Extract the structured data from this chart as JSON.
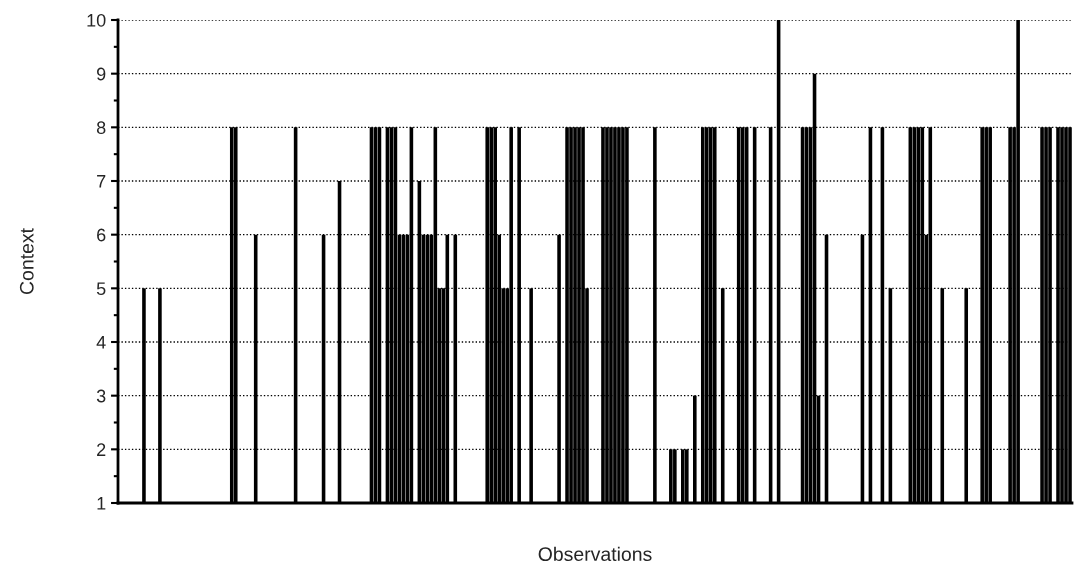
{
  "chart_data": {
    "type": "bar",
    "xlabel": "Observations",
    "ylabel": "Context",
    "color": "#000000",
    "ylim": [
      1,
      10
    ],
    "yticks": [
      1,
      {
        "value": 1.5,
        "label": null
      },
      2,
      {
        "value": 2.5,
        "label": null
      },
      3,
      {
        "value": 3.5,
        "label": null
      },
      4,
      {
        "value": 4.5,
        "label": null
      },
      5,
      {
        "value": 5.5,
        "label": null
      },
      6,
      {
        "value": 6.5,
        "label": null
      },
      7,
      {
        "value": 7.5,
        "label": null
      },
      8,
      {
        "value": 8.5,
        "label": null
      },
      9,
      {
        "value": 9.5,
        "label": null
      },
      10
    ],
    "grid": "y",
    "legend": false,
    "categories": [
      null,
      null,
      null,
      null,
      null,
      null,
      null,
      null,
      null,
      null,
      null,
      null,
      null,
      null,
      null,
      null,
      null,
      null,
      null,
      null,
      null,
      null,
      null,
      null,
      null,
      null,
      null,
      null,
      null,
      null,
      null,
      null,
      null,
      null,
      null,
      null,
      null,
      null,
      null,
      null,
      null,
      null,
      null,
      null,
      null,
      null,
      null,
      null,
      null,
      null,
      null,
      null,
      null,
      null,
      null,
      null,
      null,
      null,
      null,
      null,
      null,
      null,
      null,
      null,
      null,
      null,
      null,
      null,
      null,
      null,
      null,
      null,
      null,
      null,
      null,
      null,
      null,
      null,
      null,
      null,
      null,
      null,
      null,
      null,
      null,
      null,
      null,
      null,
      null,
      null,
      null,
      null,
      null,
      null,
      null,
      null,
      null,
      null,
      null,
      null,
      null,
      null,
      null,
      null,
      null,
      null,
      null,
      null,
      null,
      null,
      null,
      null,
      null,
      null,
      null,
      null,
      null,
      null,
      null,
      null,
      null,
      null,
      null,
      null,
      null,
      null,
      null,
      null,
      null,
      null,
      null,
      null,
      null,
      null,
      null,
      null,
      null,
      null,
      null,
      null,
      null,
      null,
      null,
      null,
      null,
      null,
      null,
      null,
      null,
      null,
      null,
      null,
      null,
      null,
      null,
      null,
      null,
      null,
      null,
      null,
      null,
      null,
      null,
      null,
      null,
      null,
      null,
      null,
      null,
      null,
      null,
      null,
      null,
      null,
      null,
      null,
      null,
      null,
      null,
      null,
      null,
      null,
      null,
      null,
      null,
      null,
      null,
      null,
      null,
      null,
      null,
      null,
      null,
      null,
      null,
      null,
      null,
      null,
      null,
      null,
      null,
      null,
      null,
      null,
      null,
      null,
      null,
      null,
      null,
      null,
      null,
      null,
      null,
      null,
      null,
      null,
      null,
      null,
      null,
      null,
      null,
      null,
      null,
      null,
      null,
      null,
      null,
      null,
      null,
      null,
      null,
      null,
      null,
      null,
      null,
      null,
      null,
      null,
      null
    ],
    "values": [
      1,
      1,
      1,
      1,
      1,
      1,
      5,
      1,
      1,
      1,
      5,
      1,
      1,
      1,
      1,
      1,
      1,
      1,
      1,
      1,
      1,
      1,
      1,
      1,
      1,
      1,
      1,
      1,
      8,
      8,
      1,
      1,
      1,
      1,
      6,
      1,
      1,
      1,
      1,
      1,
      1,
      1,
      1,
      1,
      8,
      1,
      1,
      1,
      1,
      1,
      1,
      6,
      1,
      1,
      1,
      7,
      1,
      1,
      1,
      1,
      1,
      1,
      1,
      8,
      8,
      8,
      1,
      8,
      8,
      8,
      6,
      6,
      6,
      8,
      1,
      7,
      6,
      6,
      6,
      8,
      5,
      5,
      6,
      1,
      6,
      1,
      1,
      1,
      1,
      1,
      1,
      1,
      8,
      8,
      8,
      6,
      5,
      5,
      8,
      1,
      8,
      1,
      1,
      5,
      1,
      1,
      1,
      1,
      1,
      1,
      6,
      1,
      8,
      8,
      8,
      8,
      8,
      5,
      1,
      1,
      1,
      8,
      8,
      8,
      8,
      8,
      8,
      8,
      1,
      1,
      1,
      1,
      1,
      1,
      8,
      1,
      1,
      1,
      2,
      2,
      1,
      2,
      2,
      1,
      3,
      1,
      8,
      8,
      8,
      8,
      1,
      5,
      1,
      1,
      1,
      8,
      8,
      8,
      1,
      8,
      1,
      1,
      1,
      8,
      1,
      10,
      1,
      1,
      1,
      1,
      1,
      8,
      8,
      8,
      9,
      3,
      1,
      6,
      1,
      1,
      1,
      1,
      1,
      1,
      1,
      1,
      6,
      1,
      8,
      1,
      1,
      8,
      1,
      5,
      1,
      1,
      1,
      1,
      8,
      8,
      8,
      8,
      6,
      8,
      1,
      1,
      5,
      1,
      1,
      1,
      1,
      1,
      5,
      1,
      1,
      1,
      8,
      8,
      8,
      1,
      1,
      1,
      1,
      8,
      8,
      10,
      1,
      1,
      1,
      1,
      1,
      8,
      8,
      8,
      1,
      8,
      8,
      8,
      8
    ]
  }
}
